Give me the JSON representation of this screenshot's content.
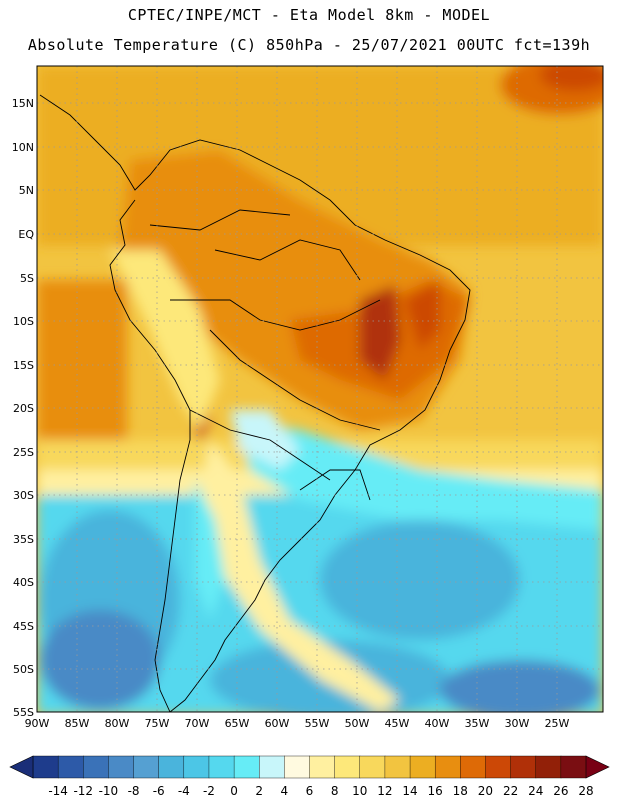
{
  "header": {
    "line1": "CPTEC/INPE/MCT -  Eta Model 8km - MODEL",
    "line2": "Absolute Temperature (C) 850hPa - 25/07/2021 00UTC fct=139h"
  },
  "map": {
    "lon_range": [
      -90,
      -19
    ],
    "lat_range": [
      -55,
      19
    ],
    "lat_labels": [
      "15N",
      "10N",
      "5N",
      "EQ",
      "5S",
      "10S",
      "15S",
      "20S",
      "25S",
      "30S",
      "35S",
      "40S",
      "45S",
      "50S",
      "55S"
    ],
    "lon_labels": [
      "90W",
      "85W",
      "80W",
      "75W",
      "70W",
      "65W",
      "60W",
      "55W",
      "50W",
      "45W",
      "40W",
      "35W",
      "30W",
      "25W"
    ]
  },
  "colorbar": {
    "labels": [
      "-14",
      "-12",
      "-10",
      "-8",
      "-6",
      "-4",
      "-2",
      "0",
      "2",
      "4",
      "6",
      "8",
      "10",
      "12",
      "14",
      "16",
      "18",
      "20",
      "22",
      "24",
      "26",
      "28"
    ],
    "colors": [
      "#1e3c8c",
      "#2d5aa8",
      "#3a72b8",
      "#4a8ac6",
      "#55a0d2",
      "#4ab4dc",
      "#4cc6e6",
      "#55d8ee",
      "#66ecf6",
      "#c8f6fa",
      "#fffae0",
      "#fff0a0",
      "#fde87a",
      "#f8d85c",
      "#f2c440",
      "#ecae22",
      "#e88e10",
      "#de6a06",
      "#cc4806",
      "#b03008",
      "#922008",
      "#7a0e12"
    ],
    "left_tip_color": "#1a2e78",
    "right_tip_color": "#780014"
  }
}
